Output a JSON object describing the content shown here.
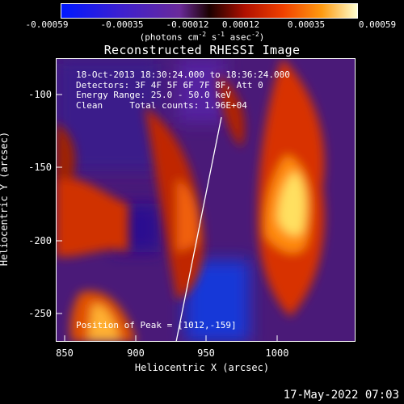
{
  "colorbar": {
    "tick_labels": [
      "-0.00059",
      "-0.00035",
      "-0.00012",
      "0.00012",
      "0.00035",
      "0.00059"
    ],
    "units_text": "(photons cm",
    "units_exp1": "-2",
    "units_mid": " s",
    "units_exp2": "-1",
    "units_tail": " asec",
    "units_exp3": "-2",
    "units_close": ")"
  },
  "title": "Reconstructed RHESSI Image",
  "info_lines": [
    "18-Oct-2013 18:30:24.000 to 18:36:24.000",
    "Detectors: 3F 4F 5F 6F 7F 8F, Att 0",
    "Energy Range: 25.0 - 50.0 keV",
    "Clean     Total counts: 1.96E+04"
  ],
  "peak_text": "Position of Peak = [1012,-159]",
  "axes": {
    "x_label": "Heliocentric X (arcsec)",
    "y_label": "Heliocentric Y (arcsec)",
    "x_ticks": [
      "850",
      "900",
      "950",
      "1000"
    ],
    "y_ticks": [
      "-100",
      "-150",
      "-200",
      "-250"
    ]
  },
  "datestamp": "17-May-2022 07:03",
  "colors": {
    "background": "#000000",
    "limb_line": "#ffffff",
    "text": "#ffffff"
  }
}
